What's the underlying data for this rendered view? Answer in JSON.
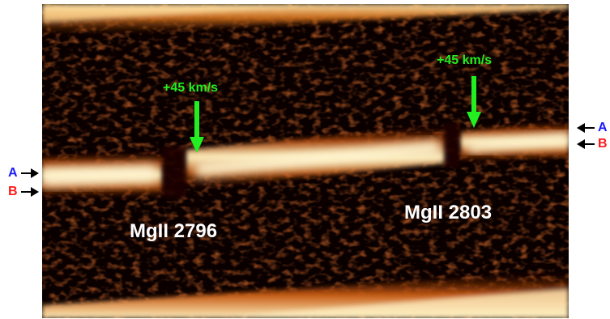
{
  "annotations": {
    "velocity_left": "+45 km/s",
    "velocity_right": "+45 km/s",
    "line_left": "MgII 2796",
    "line_right": "MgII 2803",
    "trace_a": "A",
    "trace_b": "B"
  },
  "colors": {
    "velocity_text": "#22ee22",
    "velocity_arrow": "#22ee22",
    "trace_a": "#1a1aff",
    "trace_b": "#ff1a1a",
    "line_label": "#ffffff",
    "background_map": "#0a0000",
    "emission_hot": "#fff4c8",
    "emission_mid": "#e88a1a",
    "emission_warm": "#8a2400"
  }
}
